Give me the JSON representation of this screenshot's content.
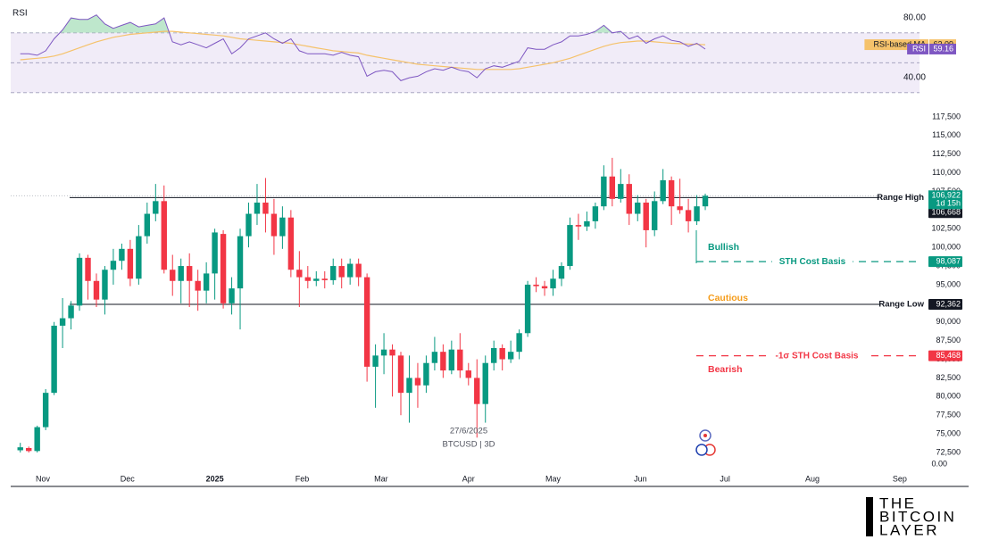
{
  "chart_data": [
    {
      "type": "line",
      "title": "RSI",
      "x": [
        -8,
        -5,
        -2,
        1,
        4,
        7,
        10,
        13,
        16,
        19,
        22,
        25,
        28,
        31,
        34,
        37,
        40,
        43,
        46,
        49,
        52,
        55,
        58,
        61,
        64,
        67,
        70,
        73,
        76,
        79,
        82,
        85,
        88,
        91,
        94,
        97,
        100,
        103,
        106,
        109,
        112,
        115,
        118,
        121,
        124,
        127,
        130,
        133,
        136,
        139,
        142,
        145,
        148,
        151,
        154,
        157,
        160,
        163,
        166,
        169,
        172,
        175,
        178,
        181,
        184,
        187,
        190,
        193,
        196,
        199,
        202,
        205,
        208,
        211,
        214,
        217,
        220,
        223,
        226,
        229,
        232,
        235
      ],
      "xlim": [
        -11.4,
        311
      ],
      "ylim": [
        26.3,
        87.2
      ],
      "yticks": [
        {
          "value": 40,
          "label": "40.00"
        },
        {
          "value": 80,
          "label": "80.00"
        }
      ],
      "levels": [
        70,
        50,
        30
      ],
      "band_color": "#ede7f6",
      "overbought_fill": "#b7e4c7",
      "series": [
        {
          "name": "RSI-based MA",
          "color": "#f5c26b",
          "text_color": "#131722",
          "values": [
            52,
            52.5,
            53,
            53.5,
            54.5,
            56,
            58,
            60,
            62,
            64,
            65.5,
            67,
            68,
            69,
            69.5,
            70,
            70.5,
            71,
            71,
            70.5,
            70,
            69.5,
            69,
            68.5,
            68,
            67,
            66,
            65.5,
            65,
            64.5,
            64,
            63.5,
            63,
            62,
            61,
            60,
            59,
            58,
            57.5,
            57,
            56.5,
            55,
            54,
            53,
            52,
            51,
            50,
            49,
            48.5,
            48,
            47.5,
            47,
            46.5,
            46,
            45.5,
            45.5,
            45.5,
            45.5,
            45.5,
            46,
            47,
            48,
            49,
            50,
            51.5,
            53,
            55,
            57,
            59,
            61,
            62.5,
            63.5,
            64,
            64.5,
            64.5,
            64,
            63.5,
            63,
            62.8,
            62.5,
            62.3,
            62.09
          ]
        },
        {
          "name": "RSI",
          "color": "#7e57c2",
          "text_color": "#ffffff",
          "values": [
            56,
            56,
            55,
            58,
            66,
            72,
            80,
            79,
            79,
            82,
            76,
            73,
            75,
            77,
            74,
            75,
            76,
            80,
            64,
            62,
            64,
            62,
            60,
            63,
            66,
            56,
            60,
            66,
            68,
            70,
            66,
            63,
            66,
            58,
            56,
            56,
            56,
            55,
            57,
            55,
            54,
            41,
            44,
            45,
            44,
            38,
            40,
            41,
            44,
            46,
            45,
            47,
            45,
            44,
            40,
            46,
            48,
            47,
            49,
            51,
            60,
            59,
            59,
            62,
            64,
            68,
            68,
            69,
            71,
            75,
            70,
            71,
            66,
            68,
            63,
            66,
            68,
            65,
            64,
            61,
            63,
            59.16
          ]
        }
      ]
    },
    {
      "type": "candlestick",
      "symbol": "BTCUSD | 3D",
      "date": "27/6/2025",
      "bottom_label": "0.00",
      "x": [
        -8,
        -5,
        -2,
        1,
        4,
        7,
        10,
        13,
        16,
        19,
        22,
        25,
        28,
        31,
        34,
        37,
        40,
        43,
        46,
        49,
        52,
        55,
        58,
        61,
        64,
        67,
        70,
        73,
        76,
        79,
        82,
        85,
        88,
        91,
        94,
        97,
        100,
        103,
        106,
        109,
        112,
        115,
        118,
        121,
        124,
        127,
        130,
        133,
        136,
        139,
        142,
        145,
        148,
        151,
        154,
        157,
        160,
        163,
        166,
        169,
        172,
        175,
        178,
        181,
        184,
        187,
        190,
        193,
        196,
        199,
        202,
        205,
        208,
        211,
        214,
        217,
        220,
        223,
        226,
        229,
        232,
        235
      ],
      "xlim": [
        -11.4,
        311
      ],
      "xticks": [
        {
          "value": 0,
          "label": "Nov"
        },
        {
          "value": 30,
          "label": "Dec"
        },
        {
          "value": 61,
          "label": "2025"
        },
        {
          "value": 92,
          "label": "Feb"
        },
        {
          "value": 120,
          "label": "Mar"
        },
        {
          "value": 151,
          "label": "Apr"
        },
        {
          "value": 181,
          "label": "May"
        },
        {
          "value": 212,
          "label": "Jun"
        },
        {
          "value": 242,
          "label": "Jul"
        },
        {
          "value": 273,
          "label": "Aug"
        },
        {
          "value": 304,
          "label": "Sep"
        }
      ],
      "ylim": [
        69750,
        119400
      ],
      "yticks": [
        {
          "value": 72500,
          "label": "72,500"
        },
        {
          "value": 75000,
          "label": "75,000"
        },
        {
          "value": 77500,
          "label": "77,500"
        },
        {
          "value": 80000,
          "label": "80,000"
        },
        {
          "value": 82500,
          "label": "82,500"
        },
        {
          "value": 85000,
          "label": "85,000"
        },
        {
          "value": 87500,
          "label": "87,500"
        },
        {
          "value": 90000,
          "label": "90,000"
        },
        {
          "value": 92500,
          "label": "92,500"
        },
        {
          "value": 95000,
          "label": "95,000"
        },
        {
          "value": 97500,
          "label": "97,500"
        },
        {
          "value": 100000,
          "label": "100,000"
        },
        {
          "value": 102500,
          "label": "102,500"
        },
        {
          "value": 105000,
          "label": "105,000"
        },
        {
          "value": 107500,
          "label": "107,500"
        },
        {
          "value": 110000,
          "label": "110,000"
        },
        {
          "value": 112500,
          "label": "112,500"
        },
        {
          "value": 115000,
          "label": "115,000"
        },
        {
          "value": 117500,
          "label": "117,500"
        }
      ],
      "up_color": "#089981",
      "down_color": "#f23645",
      "open": [
        72800,
        73100,
        72700,
        75900,
        80500,
        89500,
        90500,
        92200,
        98600,
        95500,
        93000,
        97000,
        98200,
        99800,
        95800,
        101500,
        104500,
        106200,
        97000,
        95500,
        97500,
        95500,
        94200,
        96500,
        101800,
        92500,
        94500,
        101500,
        104500,
        106000,
        104500,
        101500,
        104000,
        97000,
        96000,
        95500,
        95800,
        95600,
        97500,
        96000,
        97800,
        96000,
        84000,
        85500,
        86300,
        85500,
        80500,
        82500,
        81500,
        84500,
        86000,
        83500,
        86300,
        83500,
        82500,
        79000,
        84500,
        86500,
        85000,
        86000,
        88500,
        95000,
        94800,
        94500,
        95800,
        97500,
        103000,
        102800,
        103500,
        105500,
        109500,
        106500,
        108500,
        104500,
        106000,
        102300,
        106200,
        109000,
        105500,
        105000,
        103500,
        105500
      ],
      "high": [
        73800,
        73300,
        76100,
        81000,
        90000,
        93200,
        92800,
        99200,
        99000,
        96500,
        97500,
        99800,
        100500,
        101000,
        103000,
        106000,
        108500,
        108300,
        99000,
        98500,
        99200,
        97000,
        98000,
        102500,
        102300,
        96000,
        102500,
        106000,
        108500,
        109300,
        106500,
        105500,
        105000,
        99500,
        97500,
        96800,
        96800,
        98500,
        98500,
        98500,
        98500,
        96500,
        87000,
        88500,
        87000,
        86000,
        85500,
        84500,
        85500,
        88000,
        87000,
        87500,
        88500,
        84500,
        85000,
        85500,
        87500,
        87000,
        87500,
        89000,
        95500,
        96000,
        95500,
        97000,
        98000,
        104000,
        104500,
        104800,
        106000,
        111000,
        112000,
        110500,
        109800,
        107000,
        106500,
        107500,
        110500,
        109500,
        109200,
        106500,
        107000,
        107200
      ],
      "low": [
        72500,
        72500,
        72500,
        75500,
        80200,
        86500,
        89000,
        91500,
        93000,
        92000,
        91000,
        95000,
        97000,
        94800,
        95000,
        100500,
        103500,
        96500,
        93500,
        92500,
        92000,
        91500,
        92500,
        93000,
        91800,
        91000,
        89000,
        100000,
        103000,
        102000,
        99000,
        99800,
        96000,
        92000,
        94500,
        94800,
        94500,
        95000,
        94500,
        95000,
        94800,
        82000,
        78500,
        83000,
        80000,
        77500,
        76500,
        78500,
        80500,
        83500,
        82500,
        83000,
        82500,
        81500,
        74500,
        76500,
        83500,
        83500,
        84500,
        85000,
        88000,
        94000,
        93500,
        93500,
        94800,
        97000,
        101000,
        102200,
        102500,
        105000,
        105500,
        106000,
        103000,
        103500,
        100000,
        101500,
        105800,
        103000,
        104500,
        102000,
        103000,
        105000
      ],
      "close": [
        73200,
        72700,
        75900,
        80500,
        89500,
        90500,
        92200,
        98600,
        95500,
        93000,
        97000,
        98200,
        99800,
        95800,
        101500,
        104500,
        106200,
        97000,
        95500,
        97500,
        95500,
        94200,
        96500,
        102000,
        92500,
        94500,
        101500,
        104500,
        106000,
        104500,
        101500,
        104000,
        97000,
        96000,
        95500,
        95800,
        95600,
        97500,
        96000,
        97800,
        96000,
        84000,
        85500,
        86300,
        85500,
        80500,
        82500,
        81500,
        84500,
        86000,
        83500,
        86300,
        83500,
        82500,
        79000,
        84500,
        86500,
        85000,
        86000,
        88500,
        95000,
        94800,
        94500,
        95800,
        97500,
        103000,
        102800,
        103500,
        105500,
        109500,
        106500,
        108500,
        104500,
        106000,
        102300,
        106200,
        109000,
        105500,
        105000,
        103500,
        105500,
        106922
      ],
      "last_price": {
        "value": 106922,
        "value_label": "106,922",
        "countdown": "1d 15h"
      },
      "levels": [
        {
          "label": "Range High",
          "value": 106668,
          "value_label": "106,668",
          "style": "solid",
          "color": "#131722"
        },
        {
          "label": "Range Low",
          "value": 92362,
          "value_label": "92,362",
          "style": "solid",
          "color": "#131722"
        },
        {
          "label": "STH Cost Basis",
          "value": 98087,
          "value_label": "98,087",
          "style": "dashed",
          "color": "#089981"
        },
        {
          "label": "-1σ STH Cost Basis",
          "value": 85468,
          "value_label": "85,468",
          "style": "dashed",
          "color": "#f23645"
        }
      ],
      "annotations": [
        {
          "text": "Bullish",
          "color": "#089981"
        },
        {
          "text": "Cautious",
          "color": "#f59c1a"
        },
        {
          "text": "Bearish",
          "color": "#f23645"
        }
      ]
    }
  ],
  "watermark": {
    "lines": [
      "THE",
      "BITCOIN",
      "LAYER"
    ]
  }
}
